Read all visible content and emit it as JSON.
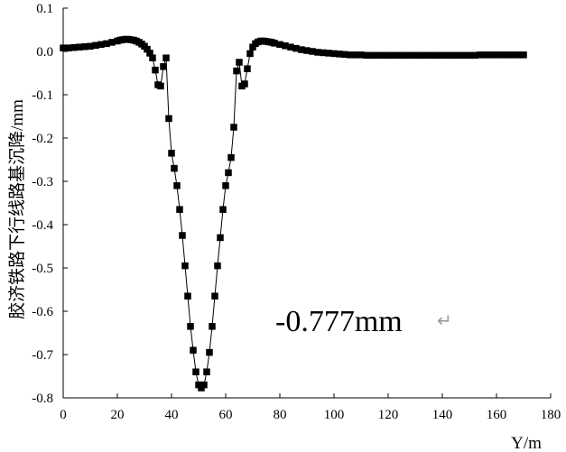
{
  "chart_data": {
    "type": "scatter",
    "title": "",
    "xlabel": "Y/m",
    "ylabel": "胶济铁路下行线路基沉降/mm",
    "xlim": [
      0,
      180
    ],
    "ylim": [
      -0.8,
      0.1
    ],
    "xticks": [
      "0",
      "20",
      "40",
      "60",
      "80",
      "100",
      "120",
      "140",
      "160",
      "180"
    ],
    "yticks": [
      "0.1",
      "0.0",
      "-0.1",
      "-0.2",
      "-0.3",
      "-0.4",
      "-0.5",
      "-0.6",
      "-0.7",
      "-0.8"
    ],
    "grid": false,
    "legend": "none",
    "annotation": {
      "text": "-0.777mm",
      "glyph": "↵"
    },
    "series": [
      {
        "marker": "square",
        "color": "#000000",
        "line": "thin",
        "points": [
          [
            0,
            0.008
          ],
          [
            2,
            0.008
          ],
          [
            4,
            0.009
          ],
          [
            6,
            0.01
          ],
          [
            8,
            0.011
          ],
          [
            10,
            0.012
          ],
          [
            12,
            0.014
          ],
          [
            14,
            0.016
          ],
          [
            16,
            0.018
          ],
          [
            18,
            0.021
          ],
          [
            20,
            0.024
          ],
          [
            21,
            0.026
          ],
          [
            22,
            0.027
          ],
          [
            23,
            0.028
          ],
          [
            24,
            0.028
          ],
          [
            25,
            0.027
          ],
          [
            26,
            0.026
          ],
          [
            27,
            0.024
          ],
          [
            28,
            0.021
          ],
          [
            29,
            0.017
          ],
          [
            30,
            0.012
          ],
          [
            31,
            0.005
          ],
          [
            32,
            -0.004
          ],
          [
            33,
            -0.015
          ],
          [
            34,
            -0.043
          ],
          [
            35,
            -0.077
          ],
          [
            36,
            -0.08
          ],
          [
            37,
            -0.035
          ],
          [
            38,
            -0.015
          ],
          [
            39,
            -0.155
          ],
          [
            40,
            -0.235
          ],
          [
            41,
            -0.27
          ],
          [
            42,
            -0.31
          ],
          [
            43,
            -0.365
          ],
          [
            44,
            -0.425
          ],
          [
            45,
            -0.495
          ],
          [
            46,
            -0.565
          ],
          [
            47,
            -0.635
          ],
          [
            48,
            -0.69
          ],
          [
            49,
            -0.74
          ],
          [
            50,
            -0.77
          ],
          [
            51,
            -0.777
          ],
          [
            52,
            -0.77
          ],
          [
            53,
            -0.74
          ],
          [
            54,
            -0.695
          ],
          [
            55,
            -0.635
          ],
          [
            56,
            -0.565
          ],
          [
            57,
            -0.495
          ],
          [
            58,
            -0.43
          ],
          [
            59,
            -0.365
          ],
          [
            60,
            -0.31
          ],
          [
            61,
            -0.28
          ],
          [
            62,
            -0.245
          ],
          [
            63,
            -0.175
          ],
          [
            64,
            -0.045
          ],
          [
            65,
            -0.025
          ],
          [
            66,
            -0.08
          ],
          [
            67,
            -0.075
          ],
          [
            68,
            -0.04
          ],
          [
            69,
            -0.005
          ],
          [
            70,
            0.01
          ],
          [
            71,
            0.018
          ],
          [
            72,
            0.022
          ],
          [
            73,
            0.024
          ],
          [
            74,
            0.024
          ],
          [
            75,
            0.023
          ],
          [
            76,
            0.022
          ],
          [
            77,
            0.021
          ],
          [
            78,
            0.019
          ],
          [
            80,
            0.016
          ],
          [
            82,
            0.013
          ],
          [
            84,
            0.01
          ],
          [
            86,
            0.007
          ],
          [
            88,
            0.004
          ],
          [
            90,
            0.002
          ],
          [
            92,
            0.0
          ],
          [
            94,
            -0.002
          ],
          [
            96,
            -0.003
          ],
          [
            98,
            -0.004
          ],
          [
            100,
            -0.005
          ],
          [
            102,
            -0.006
          ],
          [
            104,
            -0.007
          ],
          [
            106,
            -0.008
          ],
          [
            108,
            -0.008
          ],
          [
            110,
            -0.008
          ],
          [
            112,
            -0.009
          ],
          [
            114,
            -0.009
          ],
          [
            116,
            -0.009
          ],
          [
            118,
            -0.009
          ],
          [
            120,
            -0.009
          ],
          [
            122,
            -0.009
          ],
          [
            124,
            -0.009
          ],
          [
            126,
            -0.009
          ],
          [
            128,
            -0.009
          ],
          [
            130,
            -0.009
          ],
          [
            132,
            -0.009
          ],
          [
            134,
            -0.009
          ],
          [
            136,
            -0.009
          ],
          [
            138,
            -0.009
          ],
          [
            140,
            -0.009
          ],
          [
            142,
            -0.009
          ],
          [
            144,
            -0.009
          ],
          [
            146,
            -0.009
          ],
          [
            148,
            -0.009
          ],
          [
            150,
            -0.009
          ],
          [
            152,
            -0.009
          ],
          [
            154,
            -0.008
          ],
          [
            156,
            -0.008
          ],
          [
            158,
            -0.008
          ],
          [
            160,
            -0.008
          ],
          [
            162,
            -0.008
          ],
          [
            164,
            -0.008
          ],
          [
            166,
            -0.008
          ],
          [
            168,
            -0.008
          ],
          [
            170,
            -0.008
          ]
        ]
      }
    ]
  }
}
